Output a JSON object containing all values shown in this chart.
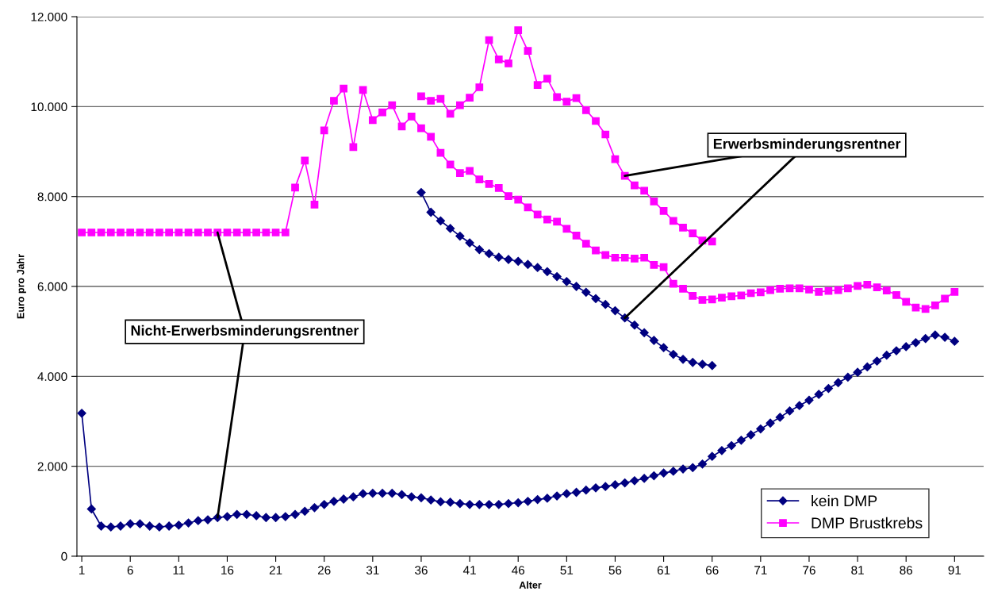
{
  "chart_data": {
    "type": "line",
    "xlabel": "Alter",
    "ylabel": "Euro pro Jahr",
    "xlim": [
      0.5,
      94
    ],
    "xticks": [
      1,
      6,
      11,
      16,
      21,
      26,
      31,
      36,
      41,
      46,
      51,
      56,
      61,
      66,
      71,
      76,
      81,
      86,
      91
    ],
    "ylim": [
      0,
      12000
    ],
    "yticks": [
      {
        "value": 0,
        "label": "0"
      },
      {
        "value": 2000,
        "label": "2.000"
      },
      {
        "value": 4000,
        "label": "4.000"
      },
      {
        "value": 6000,
        "label": "6.000"
      },
      {
        "value": 8000,
        "label": "8.000"
      },
      {
        "value": 10000,
        "label": "10.000"
      },
      {
        "value": 12000,
        "label": "12.000"
      }
    ],
    "grid": "y",
    "legend": "bottom right",
    "series": [
      {
        "name": "kein DMP",
        "color": "#000080",
        "marker": "diamond",
        "x": [
          1,
          2,
          3,
          4,
          5,
          6,
          7,
          8,
          9,
          10,
          11,
          12,
          13,
          14,
          15,
          16,
          17,
          18,
          19,
          20,
          21,
          22,
          23,
          24,
          25,
          26,
          27,
          28,
          29,
          30,
          31,
          32,
          33,
          34,
          35,
          36,
          37,
          38,
          39,
          40,
          41,
          42,
          43,
          44,
          45,
          46,
          47,
          48,
          49,
          50,
          51,
          52,
          53,
          54,
          55,
          56,
          57,
          58,
          59,
          60,
          61,
          62,
          63,
          64,
          65,
          66,
          67,
          68,
          69,
          70,
          71,
          72,
          73,
          74,
          75,
          76,
          77,
          78,
          79,
          80,
          81,
          82,
          83,
          84,
          85,
          86,
          87,
          88,
          89,
          90,
          91
        ],
        "values": [
          3180,
          1050,
          670,
          650,
          670,
          720,
          720,
          670,
          650,
          670,
          690,
          740,
          790,
          810,
          860,
          880,
          930,
          930,
          900,
          860,
          860,
          880,
          930,
          1000,
          1080,
          1150,
          1220,
          1270,
          1320,
          1390,
          1400,
          1400,
          1400,
          1370,
          1320,
          1300,
          1250,
          1210,
          1200,
          1170,
          1150,
          1150,
          1150,
          1150,
          1170,
          1190,
          1220,
          1260,
          1290,
          1340,
          1390,
          1420,
          1470,
          1520,
          1550,
          1590,
          1630,
          1680,
          1730,
          1790,
          1850,
          1890,
          1940,
          1970,
          2050,
          2220,
          2350,
          2460,
          2580,
          2700,
          2830,
          2960,
          3090,
          3230,
          3350,
          3470,
          3600,
          3730,
          3860,
          3980,
          4090,
          4210,
          4340,
          4470,
          4570,
          4660,
          4750,
          4840,
          4920,
          4870,
          4780
        ]
      },
      {
        "name": "DMP Brustkrebs",
        "color": "#ff00ff",
        "marker": "square",
        "x": [
          1,
          2,
          3,
          4,
          5,
          6,
          7,
          8,
          9,
          10,
          11,
          12,
          13,
          14,
          15,
          16,
          17,
          18,
          19,
          20,
          21,
          22,
          23,
          24,
          25,
          26,
          27,
          28,
          29,
          30,
          31,
          32,
          33,
          34,
          35,
          36,
          37,
          38,
          39,
          40,
          41,
          42,
          43,
          44,
          45,
          46,
          47,
          48,
          49,
          50,
          51,
          52,
          53,
          54,
          55,
          56,
          57,
          58,
          59,
          60,
          61,
          62,
          63,
          64,
          65,
          66,
          67,
          68,
          69,
          70,
          71,
          72,
          73,
          74,
          75,
          76,
          77,
          78,
          79,
          80,
          81,
          82,
          83,
          84,
          85,
          86,
          87,
          88,
          89,
          90,
          91
        ],
        "values": [
          7200,
          7200,
          7200,
          7200,
          7200,
          7200,
          7200,
          7200,
          7200,
          7200,
          7200,
          7200,
          7200,
          7200,
          7200,
          7200,
          7200,
          7200,
          7200,
          7200,
          7200,
          7200,
          8200,
          8800,
          7820,
          9470,
          10130,
          10400,
          9100,
          10370,
          9700,
          9870,
          10030,
          9560,
          9780,
          9520,
          9330,
          8970,
          8710,
          8520,
          8570,
          8380,
          8280,
          8190,
          8010,
          7930,
          7760,
          7600,
          7490,
          7440,
          7280,
          7130,
          6950,
          6800,
          6700,
          6640,
          6640,
          6620,
          6640,
          6480,
          6430,
          6060,
          5950,
          5790,
          5700,
          5710,
          5750,
          5780,
          5800,
          5850,
          5870,
          5920,
          5950,
          5960,
          5960,
          5930,
          5880,
          5900,
          5920,
          5960,
          6010,
          6040,
          5980,
          5910,
          5810,
          5660,
          5530,
          5500,
          5580,
          5730,
          5880
        ]
      },
      {
        "color": "#000080",
        "marker": "diamond",
        "x": [
          36,
          37,
          38,
          39,
          40,
          41,
          42,
          43,
          44,
          45,
          46,
          47,
          48,
          49,
          50,
          51,
          52,
          53,
          54,
          55,
          56,
          57,
          58,
          59,
          60,
          61,
          62,
          63,
          64,
          65,
          66
        ],
        "values": [
          8090,
          7650,
          7460,
          7290,
          7120,
          6970,
          6820,
          6730,
          6650,
          6600,
          6560,
          6490,
          6420,
          6330,
          6220,
          6110,
          6000,
          5870,
          5730,
          5600,
          5460,
          5300,
          5140,
          4970,
          4800,
          4640,
          4490,
          4380,
          4310,
          4270,
          4240
        ]
      },
      {
        "color": "#ff00ff",
        "marker": "square",
        "x": [
          36,
          37,
          38,
          39,
          40,
          41,
          42,
          43,
          44,
          45,
          46,
          47,
          48,
          49,
          50,
          51,
          52,
          53,
          54,
          55,
          56,
          57,
          58,
          59,
          60,
          61,
          62,
          63,
          64,
          65,
          66
        ],
        "values": [
          10230,
          10130,
          10170,
          9840,
          10030,
          10200,
          10430,
          11480,
          11050,
          10960,
          11700,
          11240,
          10480,
          10620,
          10210,
          10110,
          10190,
          9920,
          9680,
          9380,
          8830,
          8460,
          8250,
          8130,
          7890,
          7680,
          7460,
          7310,
          7180,
          7020,
          7000
        ]
      }
    ],
    "annotations": [
      {
        "text": "Erwerbsminderungsrentner",
        "x": 57,
        "y": 8460
      },
      {
        "text": "Nicht-Erwerbsminderungsrentner",
        "x": 15,
        "y": 7200
      }
    ]
  }
}
